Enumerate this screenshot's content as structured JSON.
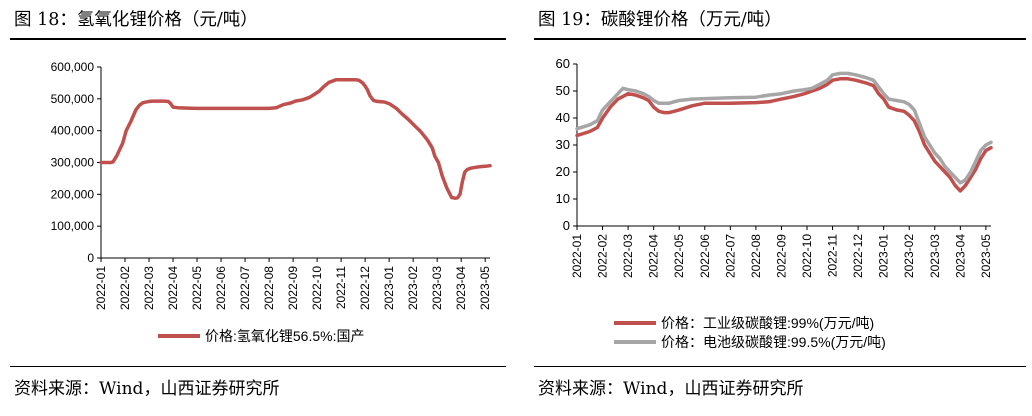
{
  "charts": {
    "left": {
      "figure_title": "图 18：氢氧化锂价格（元/吨）",
      "source": "资料来源：Wind，山西证券研究所"
    },
    "right": {
      "figure_title": "图 19：碳酸锂价格（万元/吨）",
      "source": "资料来源：Wind，山西证券研究所"
    }
  },
  "colors": {
    "series_red": "#c0504d",
    "series_gray": "#a6a6a6",
    "axis": "#000000"
  },
  "chart_data": [
    {
      "type": "line",
      "title": "图 18：氢氧化锂价格（元/吨）",
      "xlabel": "",
      "ylabel": "",
      "ylim": [
        0,
        600000
      ],
      "yticks": [
        0,
        100000,
        200000,
        300000,
        400000,
        500000,
        600000
      ],
      "ytick_labels": [
        "0",
        "100,000",
        "200,000",
        "300,000",
        "400,000",
        "500,000",
        "600,000"
      ],
      "xlim": [
        0,
        16.2
      ],
      "xtick_labels": [
        "2022-01",
        "2022-02",
        "2022-03",
        "2022-04",
        "2022-05",
        "2022-06",
        "2022-07",
        "2022-08",
        "2022-09",
        "2022-10",
        "2022-11",
        "2022-12",
        "2023-01",
        "2023-02",
        "2023-03",
        "2023-04",
        "2023-05"
      ],
      "legend_position": "bottom",
      "grid": false,
      "series": [
        {
          "name": "价格:氢氧化锂56.5%:国产",
          "color": "#c0504d",
          "x": [
            0,
            0.4,
            0.5,
            0.65,
            0.9,
            1.05,
            1.25,
            1.45,
            1.6,
            1.75,
            2.0,
            2.2,
            2.6,
            2.8,
            2.9,
            3.0,
            3.2,
            3.6,
            4.0,
            5.0,
            6.0,
            6.5,
            6.8,
            7.0,
            7.3,
            7.6,
            7.9,
            8.1,
            8.4,
            8.7,
            8.9,
            9.1,
            9.3,
            9.5,
            9.8,
            10.0,
            10.3,
            10.6,
            10.75,
            10.9,
            11.0,
            11.1,
            11.2,
            11.35,
            11.5,
            11.8,
            12.0,
            12.3,
            12.5,
            12.8,
            13.0,
            13.3,
            13.6,
            13.8,
            13.9,
            14.05,
            14.2,
            14.4,
            14.6,
            14.75,
            14.85,
            14.95,
            15.05,
            15.15,
            15.25,
            15.4,
            15.6,
            15.8,
            16.0,
            16.2
          ],
          "values": [
            300000,
            300000,
            302000,
            320000,
            360000,
            400000,
            430000,
            465000,
            480000,
            488000,
            492000,
            493000,
            493000,
            492000,
            485000,
            474000,
            472000,
            471000,
            470000,
            470000,
            470000,
            470000,
            470000,
            470000,
            472000,
            482000,
            487000,
            493000,
            497000,
            505000,
            515000,
            525000,
            540000,
            552000,
            560000,
            560000,
            560000,
            560000,
            558000,
            550000,
            540000,
            528000,
            510000,
            495000,
            492000,
            490000,
            485000,
            470000,
            455000,
            435000,
            420000,
            398000,
            370000,
            345000,
            320000,
            300000,
            260000,
            220000,
            190000,
            188000,
            189000,
            200000,
            240000,
            270000,
            278000,
            282000,
            285000,
            287000,
            288000,
            290000
          ]
        }
      ]
    },
    {
      "type": "line",
      "title": "图 19：碳酸锂价格（万元/吨）",
      "xlabel": "",
      "ylabel": "",
      "ylim": [
        0,
        60
      ],
      "yticks": [
        0,
        10,
        20,
        30,
        40,
        50,
        60
      ],
      "ytick_labels": [
        "0",
        "10",
        "20",
        "30",
        "40",
        "50",
        "60"
      ],
      "xlim": [
        0,
        16.2
      ],
      "xtick_labels": [
        "2022-01",
        "2022-02",
        "2022-03",
        "2022-04",
        "2022-05",
        "2022-06",
        "2022-07",
        "2022-08",
        "2022-09",
        "2022-10",
        "2022-11",
        "2022-12",
        "2023-01",
        "2023-02",
        "2023-03",
        "2023-04",
        "2023-05"
      ],
      "legend_position": "bottom",
      "grid": false,
      "series": [
        {
          "name": "价格：工业级碳酸锂:99%(万元/吨)",
          "color": "#c0504d",
          "x": [
            0,
            0.5,
            0.8,
            1.0,
            1.3,
            1.6,
            1.8,
            2.0,
            2.3,
            2.6,
            2.8,
            3.0,
            3.2,
            3.4,
            3.6,
            3.8,
            4.0,
            4.5,
            5.0,
            6.0,
            7.0,
            7.5,
            8.0,
            8.5,
            8.9,
            9.2,
            9.5,
            9.8,
            10.0,
            10.3,
            10.6,
            10.9,
            11.3,
            11.6,
            11.8,
            12.0,
            12.2,
            12.5,
            12.8,
            13.0,
            13.2,
            13.4,
            13.6,
            13.8,
            14.0,
            14.2,
            14.4,
            14.6,
            14.8,
            15.0,
            15.2,
            15.4,
            15.6,
            15.8,
            16.0,
            16.2
          ],
          "values": [
            33.5,
            35,
            36.5,
            40,
            44,
            47,
            48,
            49,
            48.5,
            47.5,
            46.5,
            44,
            42.5,
            42,
            42,
            42.5,
            43,
            44.5,
            45.5,
            45.5,
            45.7,
            46,
            47,
            48,
            49,
            50,
            51,
            52.5,
            54,
            54.5,
            54.5,
            54,
            53,
            52,
            49,
            47,
            44,
            43,
            42.5,
            41,
            39,
            35,
            30,
            27,
            24,
            22,
            20,
            18,
            15,
            13,
            15,
            18,
            21,
            25,
            28,
            29
          ]
        },
        {
          "name": "价格：电池级碳酸锂:99.5%(万元/吨)",
          "color": "#a6a6a6",
          "x": [
            0,
            0.5,
            0.8,
            1.0,
            1.3,
            1.6,
            1.8,
            2.0,
            2.3,
            2.6,
            2.8,
            3.0,
            3.2,
            3.4,
            3.6,
            3.8,
            4.0,
            4.5,
            5.0,
            6.0,
            7.0,
            7.5,
            8.0,
            8.5,
            8.9,
            9.2,
            9.5,
            9.8,
            10.0,
            10.3,
            10.6,
            10.9,
            11.3,
            11.6,
            11.8,
            12.0,
            12.2,
            12.5,
            12.8,
            13.0,
            13.2,
            13.4,
            13.6,
            13.8,
            14.0,
            14.2,
            14.4,
            14.6,
            14.8,
            15.0,
            15.2,
            15.4,
            15.6,
            15.8,
            16.0,
            16.2
          ],
          "values": [
            36,
            37.5,
            39,
            43,
            46,
            49,
            51,
            50.5,
            50,
            49,
            48,
            46.5,
            45.5,
            45.5,
            45.5,
            46,
            46.5,
            47,
            47.2,
            47.5,
            47.7,
            48.5,
            49,
            50,
            50.5,
            51,
            52.5,
            54,
            56,
            56.5,
            56.5,
            56,
            55,
            54,
            51.5,
            49,
            47,
            46.5,
            46,
            45,
            43,
            38,
            33,
            30,
            27,
            25,
            22,
            20,
            18,
            16,
            17,
            20,
            24,
            28,
            30,
            31
          ]
        }
      ]
    }
  ]
}
